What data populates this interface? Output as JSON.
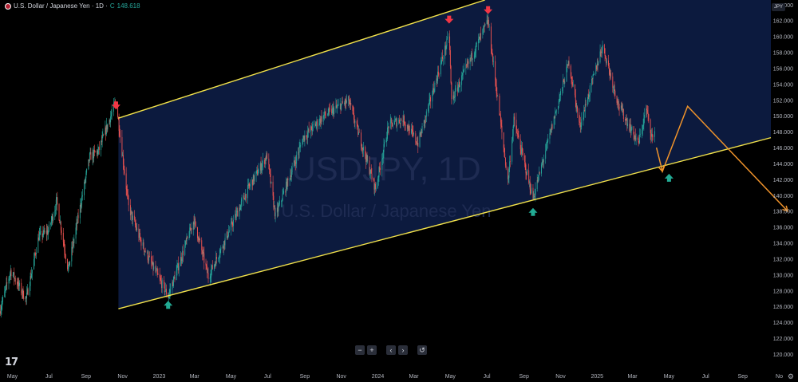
{
  "header": {
    "symbol_label": "U.S. Dollar / Japanese Yen · 1D ·",
    "close_prefix": "C",
    "close_value": "148.618",
    "currency": "JPY"
  },
  "watermark": {
    "ticker": "USDJPY, 1D",
    "name": "U.S. Dollar / Japanese Yen"
  },
  "toolbar": {
    "zoom_out": "−",
    "zoom_in": "+",
    "scroll_left": "‹",
    "scroll_right": "›",
    "reset": "↺"
  },
  "logo_text": "17",
  "colors": {
    "up": "#26a69a",
    "down": "#ef5350",
    "channel_fill": "#0c1a3e",
    "channel_line": "#f2e24b",
    "projection": "#f0932b",
    "axis_text": "#b2b5be"
  },
  "chart_data": {
    "type": "candlestick",
    "title": "",
    "xlabel": "",
    "ylabel": "",
    "ylim": [
      120,
      166
    ],
    "y_ticks": [
      120,
      122,
      124,
      126,
      128,
      130,
      132,
      134,
      136,
      138,
      140,
      142,
      144,
      146,
      148,
      150,
      152,
      154,
      156,
      158,
      160,
      162,
      164
    ],
    "x_ticks": [
      {
        "date": "2022-05-01",
        "label": "May"
      },
      {
        "date": "2022-07-01",
        "label": "Jul"
      },
      {
        "date": "2022-09-01",
        "label": "Sep"
      },
      {
        "date": "2022-11-01",
        "label": "Nov"
      },
      {
        "date": "2023-01-01",
        "label": "2023"
      },
      {
        "date": "2023-03-01",
        "label": "Mar"
      },
      {
        "date": "2023-05-01",
        "label": "May"
      },
      {
        "date": "2023-07-01",
        "label": "Jul"
      },
      {
        "date": "2023-09-01",
        "label": "Sep"
      },
      {
        "date": "2023-11-01",
        "label": "Nov"
      },
      {
        "date": "2024-01-01",
        "label": "2024"
      },
      {
        "date": "2024-03-01",
        "label": "Mar"
      },
      {
        "date": "2024-05-01",
        "label": "May"
      },
      {
        "date": "2024-07-01",
        "label": "Jul"
      },
      {
        "date": "2024-09-01",
        "label": "Sep"
      },
      {
        "date": "2024-11-01",
        "label": "Nov"
      },
      {
        "date": "2025-01-01",
        "label": "2025"
      },
      {
        "date": "2025-03-01",
        "label": "Mar"
      },
      {
        "date": "2025-05-01",
        "label": "May"
      },
      {
        "date": "2025-07-01",
        "label": "Jul"
      },
      {
        "date": "2025-09-01",
        "label": "Sep"
      },
      {
        "date": "2025-11-01",
        "label": "No"
      }
    ],
    "price_path": [
      [
        "2022-04-10",
        125.4
      ],
      [
        "2022-04-28",
        130.5
      ],
      [
        "2022-05-24",
        126.9
      ],
      [
        "2022-06-14",
        134.8
      ],
      [
        "2022-06-30",
        135.5
      ],
      [
        "2022-07-14",
        139.2
      ],
      [
        "2022-08-02",
        130.6
      ],
      [
        "2022-09-07",
        144.8
      ],
      [
        "2022-09-22",
        145.6
      ],
      [
        "2022-10-21",
        151.9
      ],
      [
        "2022-11-11",
        138.5
      ],
      [
        "2022-12-02",
        134.1
      ],
      [
        "2022-12-20",
        131.2
      ],
      [
        "2023-01-16",
        127.3
      ],
      [
        "2023-02-28",
        136.9
      ],
      [
        "2023-03-24",
        129.7
      ],
      [
        "2023-05-30",
        140.9
      ],
      [
        "2023-06-30",
        145.0
      ],
      [
        "2023-07-14",
        137.3
      ],
      [
        "2023-08-30",
        147.3
      ],
      [
        "2023-10-03",
        150.0
      ],
      [
        "2023-11-13",
        151.9
      ],
      [
        "2023-12-28",
        140.8
      ],
      [
        "2024-01-19",
        148.8
      ],
      [
        "2024-02-12",
        149.6
      ],
      [
        "2024-03-08",
        146.5
      ],
      [
        "2024-04-29",
        160.2
      ],
      [
        "2024-05-03",
        151.9
      ],
      [
        "2024-06-28",
        161.2
      ],
      [
        "2024-07-03",
        161.9
      ],
      [
        "2024-08-05",
        141.7
      ],
      [
        "2024-08-15",
        149.4
      ],
      [
        "2024-09-16",
        139.6
      ],
      [
        "2024-11-15",
        156.8
      ],
      [
        "2024-12-03",
        148.7
      ],
      [
        "2025-01-10",
        158.9
      ],
      [
        "2025-02-06",
        151.3
      ],
      [
        "2025-03-11",
        146.5
      ],
      [
        "2025-03-24",
        150.9
      ],
      [
        "2025-04-04",
        146.8
      ],
      [
        "2025-04-07",
        148.6
      ]
    ],
    "annotations": {
      "channel_upper": [
        [
          "2022-10-25",
          149.7
        ],
        [
          "2025-10-31",
          176.5
        ]
      ],
      "channel_lower": [
        [
          "2022-10-25",
          125.7
        ],
        [
          "2025-11-15",
          147.8
        ]
      ],
      "projection_path": [
        [
          "2025-04-10",
          146.0
        ],
        [
          "2025-04-20",
          143.0
        ],
        [
          "2025-06-01",
          151.2
        ],
        [
          "2025-11-15",
          138.0
        ]
      ],
      "sell_arrows": [
        [
          "2022-10-21",
          151.0
        ],
        [
          "2024-04-29",
          161.8
        ],
        [
          "2024-07-03",
          163.0
        ]
      ],
      "buy_arrows": [
        [
          "2023-01-16",
          126.5
        ],
        [
          "2024-09-16",
          138.2
        ],
        [
          "2025-05-01",
          142.5
        ]
      ]
    }
  }
}
